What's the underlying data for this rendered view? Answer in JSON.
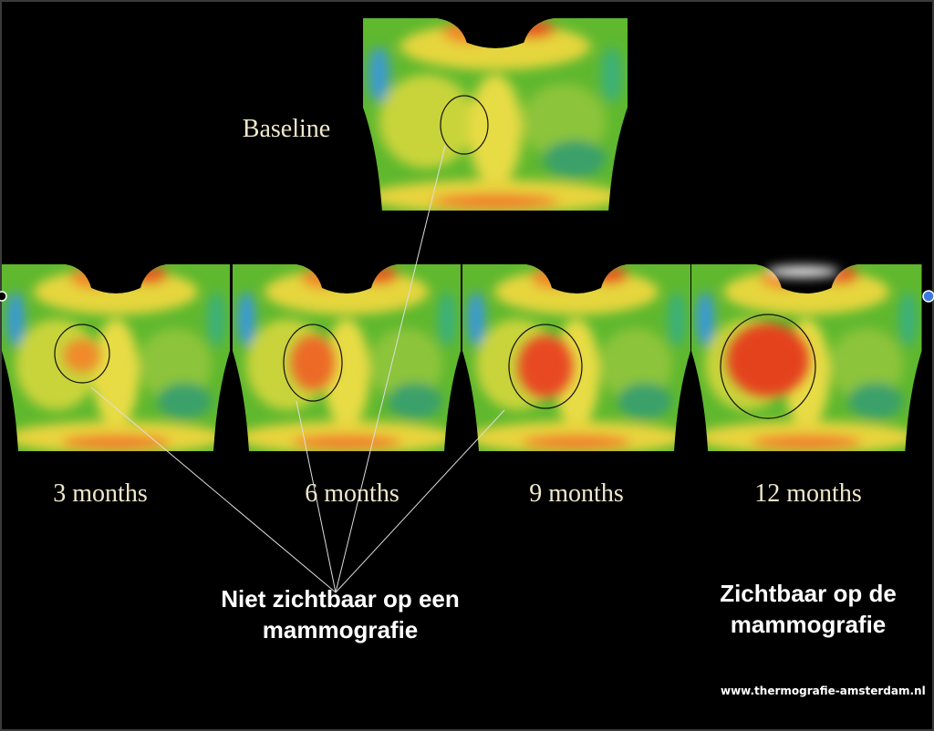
{
  "slide": {
    "baseline_label": "Baseline",
    "timepoints": [
      "3 months",
      "6 months",
      "9 months",
      "12 months"
    ],
    "caption_left": "Niet zichtbaar op een mammografie",
    "caption_right": "Zichtbaar op de mammografie",
    "website": "www.thermografie-amsterdam.nl"
  }
}
